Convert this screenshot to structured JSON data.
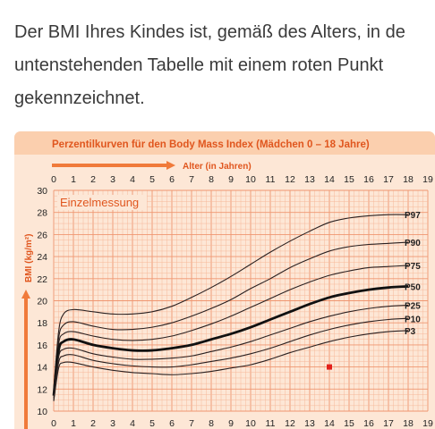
{
  "intro": {
    "line1": "Der BMI Ihres Kindes ist, gemäß des Alters, in de",
    "line2": "untenstehenden Tabelle mit einem roten Punkt",
    "line3": "gekennzeichnet."
  },
  "chart_data": {
    "type": "line",
    "title": "Perzentilkurven für den Body Mass Index (Mädchen 0 – 18  Jahre)",
    "xlabel": "Alter (in Jahren)",
    "ylabel": "BMI (kg/m²)",
    "panel_label": "Einzelmessung",
    "xlim": [
      0,
      19
    ],
    "ylim": [
      10,
      30
    ],
    "xticks": [
      "0",
      "1",
      "2",
      "3",
      "4",
      "5",
      "6",
      "7",
      "8",
      "9",
      "10",
      "11",
      "12",
      "13",
      "14",
      "15",
      "16",
      "17",
      "18",
      "19"
    ],
    "yticks": [
      "10",
      "12",
      "14",
      "16",
      "18",
      "20",
      "22",
      "24",
      "26",
      "28",
      "30"
    ],
    "grid": true,
    "x": [
      0,
      0.25,
      0.5,
      1,
      2,
      3,
      4,
      5,
      6,
      7,
      8,
      9,
      10,
      11,
      12,
      13,
      14,
      15,
      16,
      17,
      18
    ],
    "series": [
      {
        "name": "P97",
        "bold": true,
        "values": [
          12.0,
          17.2,
          18.8,
          19.2,
          19.0,
          18.8,
          18.8,
          19.0,
          19.5,
          20.3,
          21.2,
          22.2,
          23.3,
          24.4,
          25.4,
          26.3,
          27.1,
          27.5,
          27.7,
          27.8,
          27.8
        ]
      },
      {
        "name": "P90",
        "bold": true,
        "values": [
          11.8,
          16.6,
          17.8,
          18.1,
          17.7,
          17.4,
          17.4,
          17.6,
          18.0,
          18.6,
          19.3,
          20.1,
          21.1,
          22.0,
          23.0,
          23.8,
          24.5,
          24.9,
          25.1,
          25.2,
          25.3
        ]
      },
      {
        "name": "P75",
        "bold": true,
        "values": [
          11.6,
          16.1,
          17.0,
          17.2,
          16.8,
          16.5,
          16.4,
          16.5,
          16.8,
          17.3,
          17.9,
          18.6,
          19.4,
          20.2,
          21.0,
          21.7,
          22.3,
          22.7,
          23.0,
          23.1,
          23.2
        ]
      },
      {
        "name": "P50",
        "bold": true,
        "values": [
          11.4,
          15.5,
          16.3,
          16.5,
          16.0,
          15.7,
          15.5,
          15.5,
          15.7,
          16.0,
          16.5,
          17.0,
          17.6,
          18.3,
          19.0,
          19.7,
          20.3,
          20.7,
          21.0,
          21.2,
          21.3
        ]
      },
      {
        "name": "P25",
        "bold": true,
        "values": [
          11.2,
          14.9,
          15.6,
          15.7,
          15.2,
          14.9,
          14.7,
          14.7,
          14.8,
          15.0,
          15.4,
          15.8,
          16.3,
          16.9,
          17.5,
          18.1,
          18.6,
          19.0,
          19.3,
          19.5,
          19.6
        ]
      },
      {
        "name": "P10",
        "bold": true,
        "values": [
          11.0,
          14.4,
          15.0,
          15.1,
          14.6,
          14.3,
          14.1,
          14.0,
          14.0,
          14.2,
          14.5,
          14.8,
          15.2,
          15.7,
          16.3,
          16.9,
          17.4,
          17.8,
          18.1,
          18.3,
          18.4
        ]
      },
      {
        "name": "P3",
        "bold": true,
        "values": [
          10.9,
          13.9,
          14.4,
          14.4,
          14.0,
          13.7,
          13.5,
          13.4,
          13.3,
          13.4,
          13.6,
          13.9,
          14.2,
          14.7,
          15.3,
          15.8,
          16.3,
          16.7,
          17.0,
          17.2,
          17.3
        ]
      }
    ],
    "measurement": {
      "x": 14,
      "y": 14.0
    },
    "colors": {
      "panel_bg": "#fde7d6",
      "header_bg": "#fbcfae",
      "accent": "#f07a3a",
      "title_text": "#e0561e",
      "grid_minor": "#f6b89a",
      "grid_major": "#ef9670",
      "curve": "#2a2020",
      "median": "#111111",
      "point": "#e3201b",
      "axis_text": "#222222"
    }
  }
}
